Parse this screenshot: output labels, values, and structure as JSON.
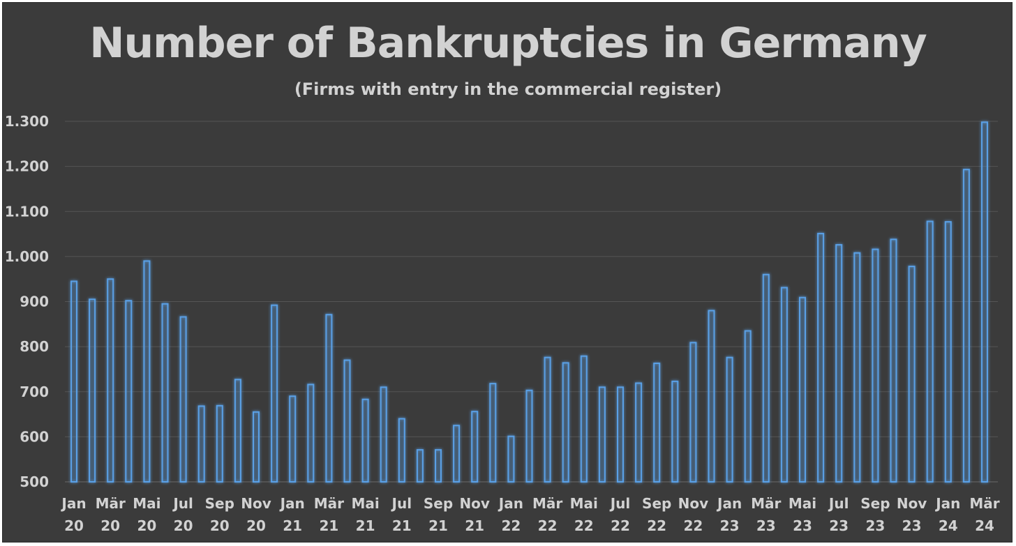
{
  "chart_data": {
    "type": "bar",
    "title": "Number of Bankruptcies in Germany",
    "subtitle": "(Firms with entry in the commercial register)",
    "xlabel": "",
    "ylabel": "",
    "ylim": [
      500,
      1300
    ],
    "yticks": [
      500,
      600,
      700,
      800,
      900,
      1000,
      1100,
      1200,
      1300
    ],
    "ytick_labels": [
      "500",
      "600",
      "700",
      "800",
      "900",
      "1.000",
      "1.100",
      "1.200",
      "1.300"
    ],
    "grid": "horizontal",
    "legend": "none",
    "bar_color": "#5aa0e6",
    "background_color": "#3b3b3b",
    "categories": [
      "Jan 20",
      "Feb 20",
      "Mär 20",
      "Apr 20",
      "Mai 20",
      "Jun 20",
      "Jul 20",
      "Aug 20",
      "Sep 20",
      "Okt 20",
      "Nov 20",
      "Dez 20",
      "Jan 21",
      "Feb 21",
      "Mär 21",
      "Apr 21",
      "Mai 21",
      "Jun 21",
      "Jul 21",
      "Aug 21",
      "Sep 21",
      "Okt 21",
      "Nov 21",
      "Dez 21",
      "Jan 22",
      "Feb 22",
      "Mär 22",
      "Apr 22",
      "Mai 22",
      "Jun 22",
      "Jul 22",
      "Aug 22",
      "Sep 22",
      "Okt 22",
      "Nov 22",
      "Dez 22",
      "Jan 23",
      "Feb 23",
      "Mär 23",
      "Apr 23",
      "Mai 23",
      "Jun 23",
      "Jul 23",
      "Aug 23",
      "Sep 23",
      "Okt 23",
      "Nov 23",
      "Dez 23",
      "Jan 24",
      "Feb 24",
      "Mär 24"
    ],
    "values": [
      945,
      905,
      950,
      902,
      990,
      895,
      866,
      668,
      669,
      727,
      655,
      892,
      690,
      716,
      871,
      770,
      683,
      710,
      640,
      571,
      571,
      625,
      656,
      718,
      601,
      703,
      776,
      764,
      779,
      710,
      710,
      719,
      763,
      723,
      809,
      880,
      776,
      835,
      960,
      931,
      909,
      1051,
      1026,
      1008,
      1016,
      1038,
      978,
      1078,
      1077,
      1193,
      1298
    ],
    "xtick_labels": [
      {
        "month": "Jan",
        "year": "20"
      },
      {
        "month": "Mär",
        "year": "20"
      },
      {
        "month": "Mai",
        "year": "20"
      },
      {
        "month": "Jul",
        "year": "20"
      },
      {
        "month": "Sep",
        "year": "20"
      },
      {
        "month": "Nov",
        "year": "20"
      },
      {
        "month": "Jan",
        "year": "21"
      },
      {
        "month": "Mär",
        "year": "21"
      },
      {
        "month": "Mai",
        "year": "21"
      },
      {
        "month": "Jul",
        "year": "21"
      },
      {
        "month": "Sep",
        "year": "21"
      },
      {
        "month": "Nov",
        "year": "21"
      },
      {
        "month": "Jan",
        "year": "22"
      },
      {
        "month": "Mär",
        "year": "22"
      },
      {
        "month": "Mai",
        "year": "22"
      },
      {
        "month": "Jul",
        "year": "22"
      },
      {
        "month": "Sep",
        "year": "22"
      },
      {
        "month": "Nov",
        "year": "22"
      },
      {
        "month": "Jan",
        "year": "23"
      },
      {
        "month": "Mär",
        "year": "23"
      },
      {
        "month": "Mai",
        "year": "23"
      },
      {
        "month": "Jul",
        "year": "23"
      },
      {
        "month": "Sep",
        "year": "23"
      },
      {
        "month": "Nov",
        "year": "23"
      },
      {
        "month": "Jan",
        "year": "24"
      },
      {
        "month": "Mär",
        "year": "24"
      }
    ]
  }
}
